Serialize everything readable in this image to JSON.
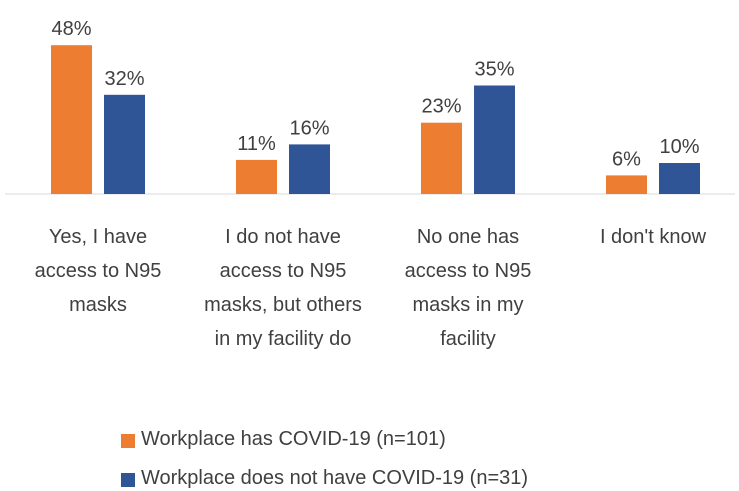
{
  "chart_data": {
    "type": "bar",
    "categories": [
      "Yes, I have access to N95 masks",
      "I do not have access to N95 masks, but others in my facility do",
      "No one has access to N95 masks in my facility",
      "I don't know"
    ],
    "series": [
      {
        "name": "Workplace has COVID-19 (n=101)",
        "color": "#ED7D31",
        "values": [
          48,
          11,
          23,
          6
        ],
        "value_labels": [
          "48%",
          "11%",
          "23%",
          "6%"
        ]
      },
      {
        "name": "Workplace does not have COVID-19 (n=31)",
        "color": "#2F5597",
        "values": [
          32,
          16,
          35,
          10
        ],
        "value_labels": [
          "32%",
          "16%",
          "35%",
          "10%"
        ]
      }
    ],
    "legend": "bottom"
  }
}
